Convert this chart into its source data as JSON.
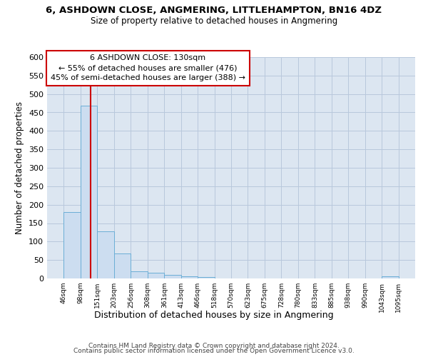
{
  "title1": "6, ASHDOWN CLOSE, ANGMERING, LITTLEHAMPTON, BN16 4DZ",
  "title2": "Size of property relative to detached houses in Angmering",
  "xlabel": "Distribution of detached houses by size in Angmering",
  "ylabel": "Number of detached properties",
  "bin_edges": [
    46,
    98,
    151,
    203,
    256,
    308,
    361,
    413,
    466,
    518,
    570,
    623,
    675,
    728,
    780,
    833,
    885,
    938,
    990,
    1043,
    1095
  ],
  "bar_heights": [
    180,
    468,
    127,
    68,
    20,
    15,
    9,
    5,
    4,
    0,
    0,
    0,
    0,
    0,
    0,
    0,
    0,
    0,
    0,
    5
  ],
  "bar_color": "#ccddf0",
  "bar_edge_color": "#6baed6",
  "property_size": 130,
  "vline_color": "#cc0000",
  "annotation_text": "6 ASHDOWN CLOSE: 130sqm\n← 55% of detached houses are smaller (476)\n45% of semi-detached houses are larger (388) →",
  "annotation_box_color": "#ffffff",
  "annotation_box_edge_color": "#cc0000",
  "ylim": [
    0,
    600
  ],
  "yticks": [
    0,
    50,
    100,
    150,
    200,
    250,
    300,
    350,
    400,
    450,
    500,
    550,
    600
  ],
  "grid_color": "#b8c8dc",
  "background_color": "#dce6f1",
  "footer1": "Contains HM Land Registry data © Crown copyright and database right 2024.",
  "footer2": "Contains public sector information licensed under the Open Government Licence v3.0."
}
